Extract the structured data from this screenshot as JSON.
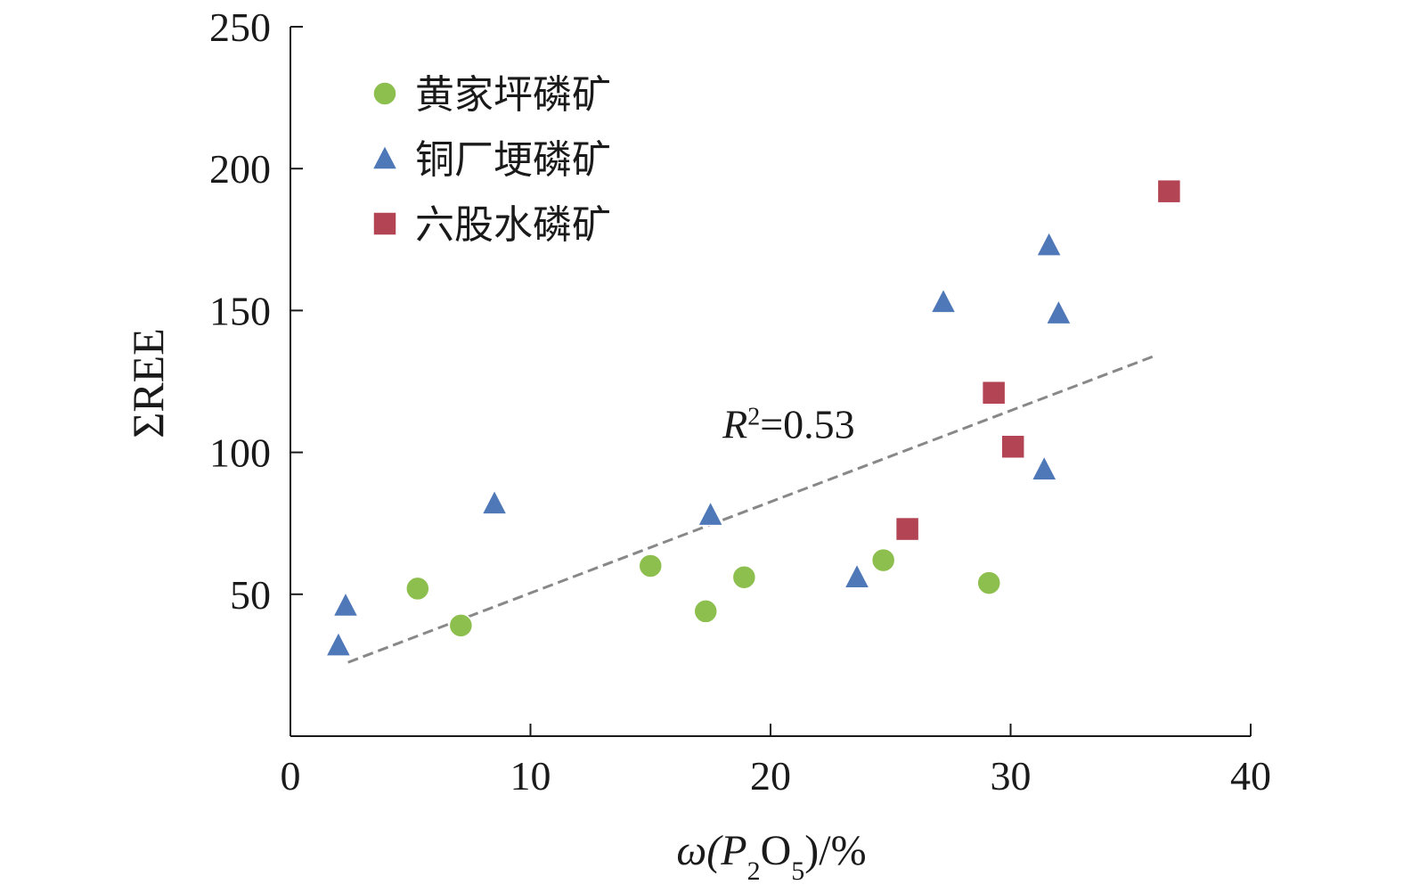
{
  "chart_data": {
    "type": "scatter",
    "title": "",
    "xlabel": {
      "prefix": "ω(P",
      "sub1": "2",
      "mid": "O",
      "sub2": "5",
      "suffix": ")/%"
    },
    "ylabel": "ΣREE",
    "xlim": [
      0,
      40
    ],
    "ylim": [
      0,
      250
    ],
    "xticks": [
      0,
      10,
      20,
      30,
      40
    ],
    "yticks": [
      50,
      100,
      150,
      200,
      250
    ],
    "legend_position": "top-left",
    "grid": false,
    "series": [
      {
        "name": "黄家坪磷矿",
        "marker": "circle",
        "color": "#8dbf4e",
        "points": [
          [
            5.3,
            52
          ],
          [
            7.1,
            39
          ],
          [
            15.0,
            60
          ],
          [
            17.3,
            44
          ],
          [
            18.9,
            56
          ],
          [
            24.7,
            62
          ],
          [
            29.1,
            54
          ]
        ]
      },
      {
        "name": "铜厂埂磷矿",
        "marker": "triangle",
        "color": "#4f78b8",
        "points": [
          [
            2.0,
            32
          ],
          [
            2.3,
            46
          ],
          [
            8.5,
            82
          ],
          [
            17.5,
            78
          ],
          [
            23.6,
            56
          ],
          [
            27.2,
            153
          ],
          [
            31.4,
            94
          ],
          [
            31.6,
            173
          ],
          [
            32.0,
            149
          ]
        ]
      },
      {
        "name": "六股水磷矿",
        "marker": "square",
        "color": "#b34454",
        "points": [
          [
            25.7,
            73
          ],
          [
            29.3,
            121
          ],
          [
            30.1,
            102
          ],
          [
            36.6,
            192
          ]
        ]
      }
    ],
    "trendline": {
      "x": [
        2.4,
        36.0
      ],
      "y": [
        26,
        134
      ],
      "color": "#888888",
      "style": "dashed"
    },
    "annotation": {
      "label": "R",
      "sup": "2",
      "text": "=0.53",
      "x": 18,
      "y": 105
    }
  }
}
